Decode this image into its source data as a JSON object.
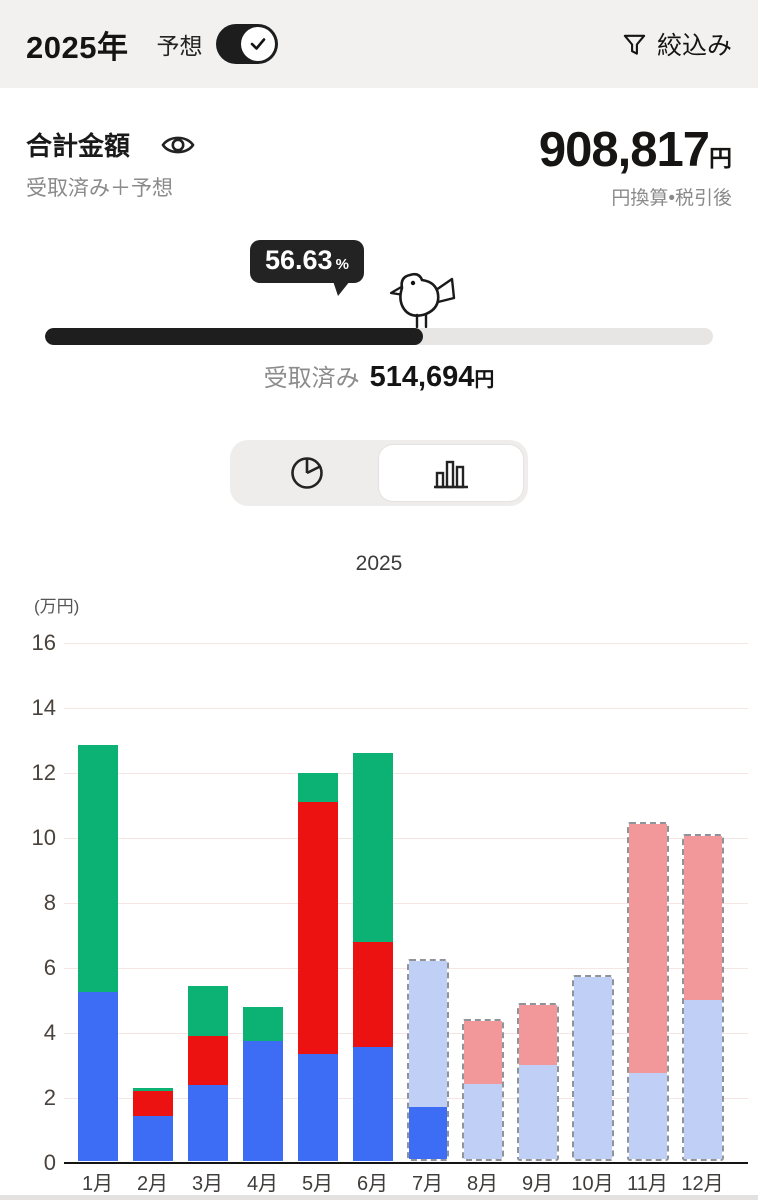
{
  "header": {
    "year": "2025年",
    "forecast_label": "予想",
    "forecast_toggle_on": true,
    "filter_label": "絞込み"
  },
  "summary": {
    "title": "合計金額",
    "subtitle": "受取済み＋予想",
    "amount": "908,817",
    "amount_unit": "円",
    "amount_note": "円換算•税引後"
  },
  "progress": {
    "percent_label": "56.63",
    "percent_unit": "%",
    "percent_value": 56.63,
    "received_label": "受取済み",
    "received_amount": "514,694",
    "received_unit": "円",
    "fill_color": "#1e1e1e",
    "track_color": "#e7e6e4"
  },
  "view_toggle": {
    "options": [
      "pie-chart",
      "bar-chart"
    ],
    "selected": "bar-chart"
  },
  "icons": {
    "visibility": "eye",
    "filter": "funnel",
    "toggle_check": "checkmark",
    "mascot": "bird",
    "pie_view": "pie-chart",
    "bar_view": "bar-chart"
  },
  "chart_data": {
    "type": "bar",
    "stacked": true,
    "title": "2025",
    "ylabel": "(万円)",
    "ylim": [
      0,
      16
    ],
    "ytick_step": 2,
    "grid": true,
    "categories": [
      "1月",
      "2月",
      "3月",
      "4月",
      "5月",
      "6月",
      "7月",
      "8月",
      "9月",
      "10月",
      "11月",
      "12月"
    ],
    "forecast_categories": [
      "7月",
      "8月",
      "9月",
      "10月",
      "11月",
      "12月"
    ],
    "series": [
      {
        "name": "received-blue",
        "color": "#3d6df5",
        "values": [
          5.2,
          1.4,
          2.35,
          3.7,
          3.3,
          3.5,
          1.6,
          0,
          0,
          0,
          0,
          0
        ]
      },
      {
        "name": "received-red",
        "color": "#ed1212",
        "values": [
          0,
          0.75,
          1.5,
          0,
          7.75,
          3.25,
          0,
          0,
          0,
          0,
          0,
          0
        ]
      },
      {
        "name": "received-green",
        "color": "#0cb273",
        "values": [
          7.6,
          0.1,
          1.55,
          1.05,
          0.9,
          5.8,
          0,
          0,
          0,
          0,
          0,
          0
        ]
      },
      {
        "name": "forecast-blue",
        "color": "#bfcff6",
        "values": [
          0,
          0,
          0,
          0,
          0,
          0,
          4.5,
          2.3,
          2.9,
          5.6,
          2.65,
          4.9
        ]
      },
      {
        "name": "forecast-pink",
        "color": "#f2989b",
        "values": [
          0,
          0,
          0,
          0,
          0,
          0,
          0,
          1.95,
          1.85,
          0,
          7.65,
          5.05
        ]
      }
    ],
    "totals": [
      12.8,
      2.25,
      5.4,
      4.75,
      11.95,
      12.55,
      6.1,
      4.25,
      4.75,
      5.6,
      10.3,
      9.95
    ]
  }
}
